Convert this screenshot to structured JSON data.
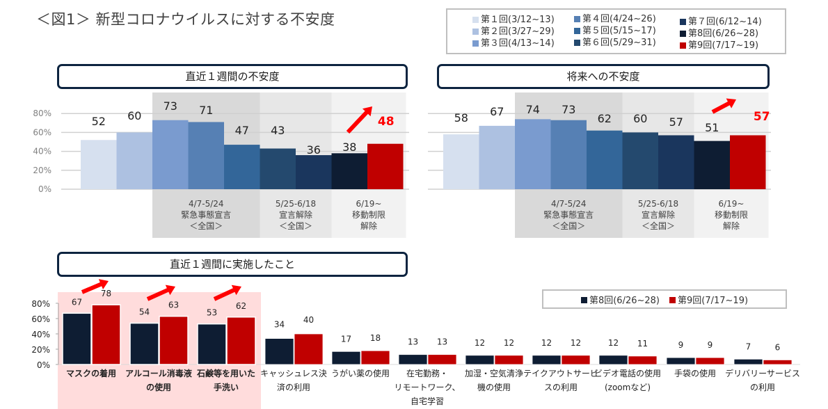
{
  "title": "＜図1＞ 新型コロナウイルスに対する不安度",
  "legend": [
    {
      "label": "第１回(3/12~13)",
      "color": "#d6e0ef"
    },
    {
      "label": "第２回(3/27~29)",
      "color": "#adc1e1"
    },
    {
      "label": "第３回(4/13~14)",
      "color": "#7a9bcf"
    },
    {
      "label": "第４回(4/24~26)",
      "color": "#5680b4"
    },
    {
      "label": "第５回(5/15~17)",
      "color": "#336699"
    },
    {
      "label": "第６回(5/29~31)",
      "color": "#24496e"
    },
    {
      "label": "第７回(6/12~14)",
      "color": "#1a365d"
    },
    {
      "label": "第8回(6/26~28)",
      "color": "#0e1d33"
    },
    {
      "label": "第9回(7/17~19)",
      "color": "#c00000"
    }
  ],
  "periods": [
    {
      "dates": "4/7-5/24",
      "line2": "緊急事態宣言",
      "line3": "＜全国＞",
      "bg": "#d9d9d9"
    },
    {
      "dates": "5/25-6/18",
      "line2": "宣言解除",
      "line3": "＜全国＞",
      "bg": "#e7e7e7"
    },
    {
      "dates": "6/19~",
      "line2": "移動制限",
      "line3": "解除",
      "bg": "#f2f2f2"
    }
  ],
  "highlight_color": "#ff0000",
  "chart_data": [
    {
      "type": "bar",
      "title": "直近１週間の不安度",
      "categories": [
        "第１回",
        "第２回",
        "第３回",
        "第４回",
        "第５回",
        "第６回",
        "第７回",
        "第8回",
        "第9回"
      ],
      "values": [
        52,
        60,
        73,
        71,
        47,
        43,
        36,
        38,
        48
      ],
      "yticks": [
        "0%",
        "20%",
        "40%",
        "60%",
        "80%"
      ],
      "ylim": [
        0,
        100
      ],
      "grid": true,
      "annotation": "increase arrow toward 48"
    },
    {
      "type": "bar",
      "title": "将来への不安度",
      "categories": [
        "第１回",
        "第２回",
        "第３回",
        "第４回",
        "第５回",
        "第６回",
        "第７回",
        "第8回",
        "第9回"
      ],
      "values": [
        58,
        67,
        74,
        73,
        62,
        60,
        57,
        51,
        57
      ],
      "ylim": [
        0,
        100
      ],
      "grid": true,
      "annotation": "increase arrow toward 57"
    },
    {
      "type": "bar",
      "title": "直近１週間に実施したこと",
      "legend": [
        "第8回(6/26~28)",
        "第9回(7/17~19)"
      ],
      "legend_placement": "top-right",
      "yticks": [
        "0%",
        "20%",
        "40%",
        "60%",
        "80%"
      ],
      "ylim": [
        0,
        80
      ],
      "categories": [
        {
          "lines": [
            "マスクの着用"
          ],
          "highlight": true
        },
        {
          "lines": [
            "アルコール消毒液",
            "の使用"
          ],
          "highlight": true
        },
        {
          "lines": [
            "石鹸等を用いた",
            "手洗い"
          ],
          "highlight": true
        },
        {
          "lines": [
            "キャッシュレス決",
            "済の利用"
          ],
          "highlight": false
        },
        {
          "lines": [
            "うがい薬の使用"
          ],
          "highlight": false
        },
        {
          "lines": [
            "在宅勤務・",
            "リモートワーク、",
            "自宅学習"
          ],
          "highlight": false
        },
        {
          "lines": [
            "加湿・空気清浄",
            "機の使用"
          ],
          "highlight": false
        },
        {
          "lines": [
            "テイクアウトサービ",
            "スの利用"
          ],
          "highlight": false
        },
        {
          "lines": [
            "ビデオ電話の使用",
            "(zoomなど)"
          ],
          "highlight": false
        },
        {
          "lines": [
            "手袋の使用"
          ],
          "highlight": false
        },
        {
          "lines": [
            "デリバリーサービス",
            "の利用"
          ],
          "highlight": false
        }
      ],
      "series": [
        {
          "name": "第8回(6/26~28)",
          "color": "#0e1d33",
          "values": [
            67,
            54,
            53,
            34,
            17,
            13,
            12,
            12,
            12,
            9,
            7
          ]
        },
        {
          "name": "第9回(7/17~19)",
          "color": "#c00000",
          "values": [
            78,
            63,
            62,
            40,
            18,
            13,
            12,
            12,
            11,
            9,
            6
          ]
        }
      ]
    }
  ]
}
